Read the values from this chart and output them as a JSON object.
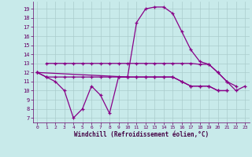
{
  "x": [
    0,
    1,
    2,
    3,
    4,
    5,
    6,
    7,
    8,
    9,
    10,
    11,
    12,
    13,
    14,
    15,
    16,
    17,
    18,
    19,
    20,
    21,
    22,
    23
  ],
  "line_zigzag": [
    12,
    11.5,
    11,
    10,
    7,
    8,
    10.5,
    9.5,
    7.5,
    11.5,
    11.5,
    11.5,
    11.5,
    11.5,
    11.5,
    11.5,
    11,
    10.5,
    10.5,
    10.5,
    10,
    10,
    null,
    null
  ],
  "line_flat_high": [
    null,
    13,
    13,
    13,
    13,
    13,
    13,
    13,
    13,
    13,
    13,
    13,
    13,
    13,
    13,
    13,
    13,
    13,
    12.9,
    12.9,
    12,
    11,
    10.5,
    null
  ],
  "line_flat_low": [
    12,
    11.5,
    11.5,
    11.5,
    11.5,
    11.5,
    11.5,
    11.5,
    11.5,
    11.5,
    11.5,
    11.5,
    11.5,
    11.5,
    11.5,
    11.5,
    11,
    10.5,
    10.5,
    10.5,
    10,
    10,
    null,
    null
  ],
  "line_bell": [
    12,
    null,
    null,
    null,
    null,
    null,
    null,
    null,
    null,
    null,
    11.5,
    17.5,
    19,
    19.2,
    19.2,
    18.5,
    16.5,
    14.5,
    13.2,
    12.9,
    12,
    11,
    10,
    10.5
  ],
  "color": "#880088",
  "bg_color": "#c8eaea",
  "grid_color": "#aacccc",
  "xlabel": "Windchill (Refroidissement éolien,°C)",
  "ylim": [
    6.5,
    19.8
  ],
  "xlim": [
    -0.5,
    23.5
  ],
  "yticks": [
    7,
    8,
    9,
    10,
    11,
    12,
    13,
    14,
    15,
    16,
    17,
    18,
    19
  ],
  "xticks": [
    0,
    1,
    2,
    3,
    4,
    5,
    6,
    7,
    8,
    9,
    10,
    11,
    12,
    13,
    14,
    15,
    16,
    17,
    18,
    19,
    20,
    21,
    22,
    23
  ]
}
